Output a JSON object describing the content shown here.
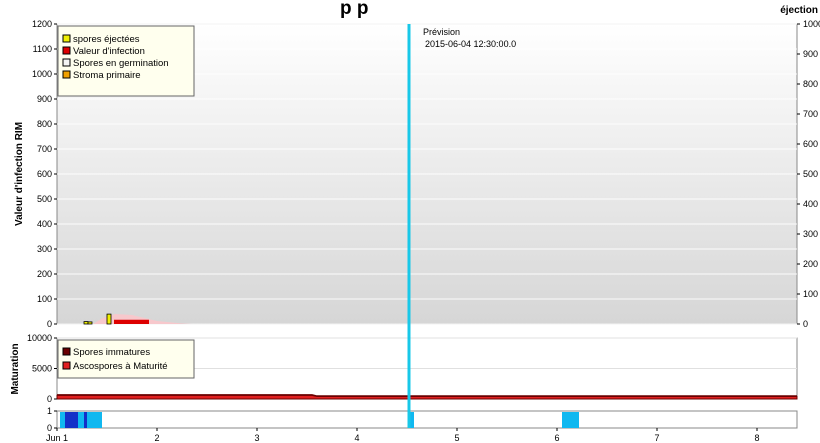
{
  "title_fragment": "p                    p",
  "colors": {
    "ejected": "#f0f000",
    "infection": "#dd0000",
    "germination": "#f4f4f4",
    "stroma": "#f0a000",
    "immature": "#6b0000",
    "mature": "#e02020",
    "forecast_line": "#18c8e8",
    "wet_dark": "#1430c8",
    "wet_light": "#10b8f0",
    "infection_area": "#f7c8cc"
  },
  "chart_data": [
    {
      "type": "bar",
      "ylabel": "Valeur d'infection RIM",
      "ylabel_right": "éjection",
      "ylim": [
        0,
        1200
      ],
      "yticks": [
        0,
        100,
        200,
        300,
        400,
        500,
        600,
        700,
        800,
        900,
        1000,
        1100,
        1200
      ],
      "y2lim": [
        0,
        1000
      ],
      "y2ticks": [
        0,
        100,
        200,
        300,
        400,
        500,
        600,
        700,
        800,
        900,
        1000
      ],
      "xlim": [
        1.0,
        8.4
      ],
      "xticks": [
        {
          "v": 1,
          "label": "Jun 1"
        },
        {
          "v": 2,
          "label": "2"
        },
        {
          "v": 3,
          "label": "3"
        },
        {
          "v": 4,
          "label": "4"
        },
        {
          "v": 5,
          "label": "5"
        },
        {
          "v": 6,
          "label": "6"
        },
        {
          "v": 7,
          "label": "7"
        },
        {
          "v": 8,
          "label": "8"
        }
      ],
      "legend": [
        "spores éjectées",
        "Valeur d'infection",
        "Spores en germination",
        "Stroma primaire"
      ],
      "legend_position": "top-left",
      "forecast": {
        "label": "Prévision",
        "datetime": "2015-06-04 12:30:00.0",
        "x": 4.52
      },
      "series": [
        {
          "name": "spores éjectées",
          "axis": "right",
          "values": [
            [
              1.29,
              8
            ],
            [
              1.33,
              7
            ],
            [
              1.52,
              33
            ]
          ]
        },
        {
          "name": "Valeur d'infection",
          "axis": "left",
          "values": [
            [
              1.57,
              17
            ],
            [
              1.92,
              17
            ]
          ]
        },
        {
          "name": "Spores en germination",
          "axis": "left",
          "area": [
            [
              1.36,
              0
            ],
            [
              1.45,
              22
            ],
            [
              1.58,
              40
            ],
            [
              1.75,
              36
            ],
            [
              2.0,
              12
            ],
            [
              2.25,
              2
            ],
            [
              2.35,
              0
            ]
          ]
        },
        {
          "name": "Stroma primaire",
          "axis": "left",
          "values": []
        }
      ]
    },
    {
      "type": "area",
      "ylabel": "Maturation",
      "ylim": [
        0,
        10000
      ],
      "yticks": [
        0,
        5000,
        10000
      ],
      "legend": [
        "Spores immatures",
        "Ascospores à Maturité"
      ],
      "legend_position": "top-left",
      "series": [
        {
          "name": "Spores immatures",
          "values": [
            [
              1.0,
              600
            ],
            [
              3.55,
              600
            ],
            [
              3.6,
              400
            ],
            [
              8.4,
              400
            ]
          ]
        },
        {
          "name": "Ascospores à Maturité",
          "values": [
            [
              1.0,
              600
            ],
            [
              3.55,
              600
            ],
            [
              3.6,
              400
            ],
            [
              8.4,
              400
            ]
          ]
        }
      ]
    },
    {
      "type": "bar",
      "ylim": [
        0,
        1
      ],
      "yticks": [
        0,
        1
      ],
      "series": [
        {
          "name": "wet",
          "intervals": [
            [
              1.03,
              1.45
            ],
            [
              4.52,
              4.57
            ],
            [
              6.05,
              6.22
            ]
          ]
        },
        {
          "name": "wet-intense",
          "intervals": [
            [
              1.08,
              1.21
            ],
            [
              1.27,
              1.3
            ]
          ]
        }
      ]
    }
  ]
}
